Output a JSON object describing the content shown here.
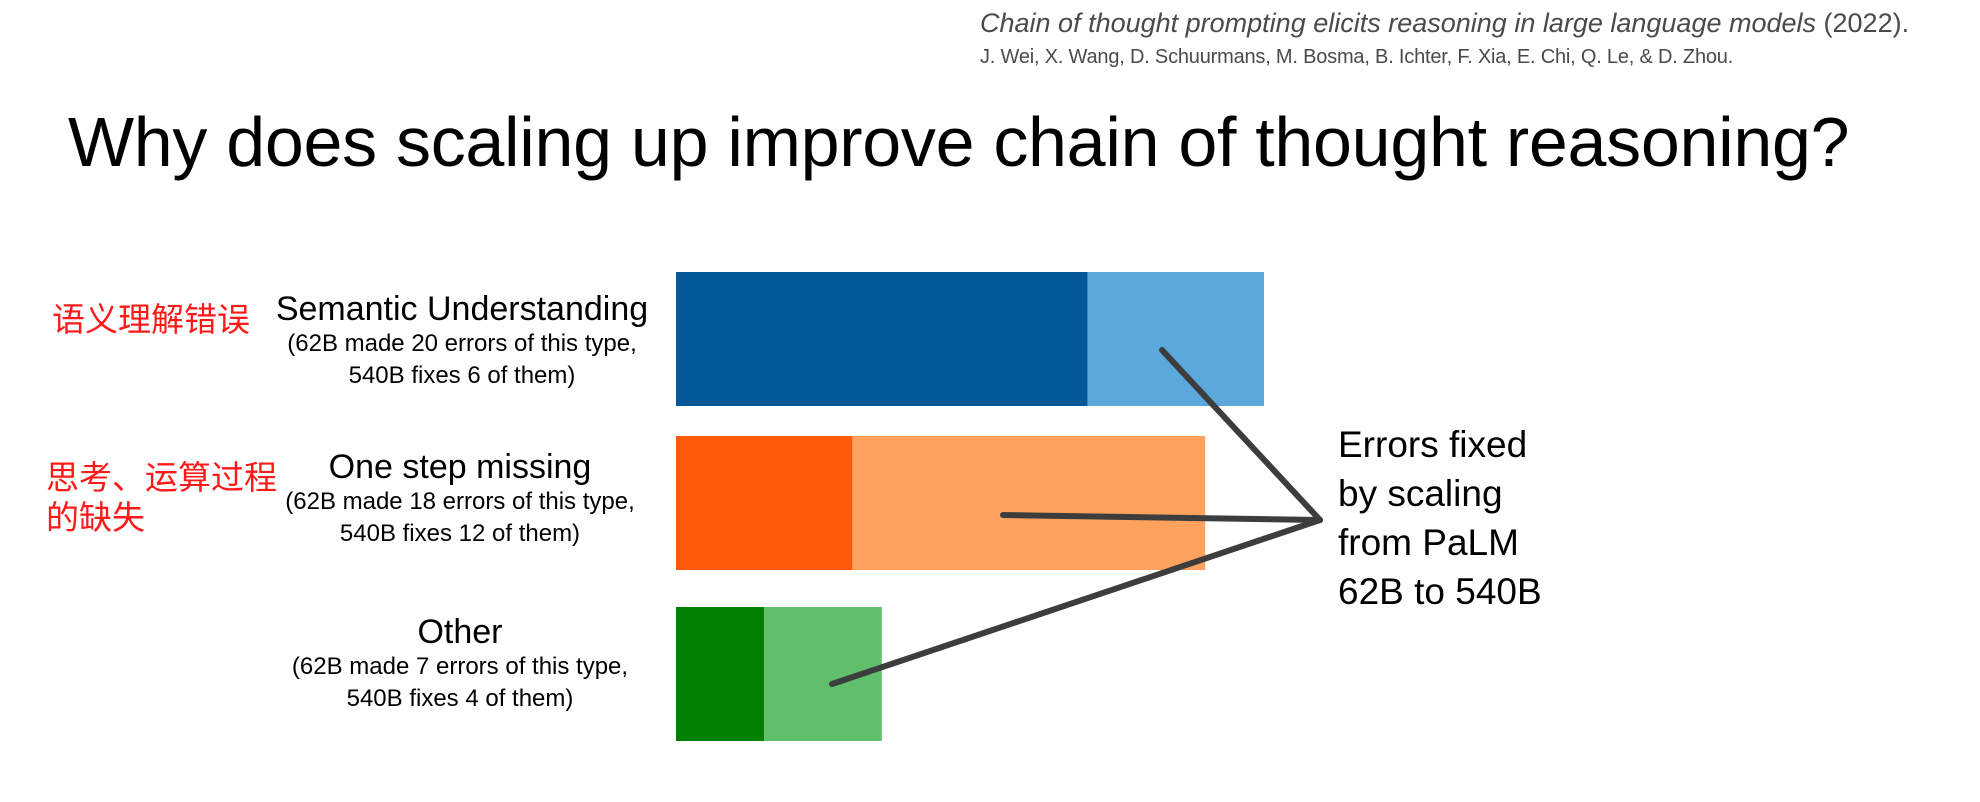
{
  "citation": {
    "paper_title": "Chain of thought prompting elicits reasoning in large language models",
    "year": " (2022).",
    "authors": "J. Wei, X. Wang, D. Schuurmans, M. Bosma, B. Ichter, F. Xia, E. Chi, Q. Le, & D. Zhou."
  },
  "slide_title": "Why does scaling up improve chain of thought reasoning?",
  "annotations": {
    "semantic": "语义理解错误",
    "onestep_line1": "思考、运算过程",
    "onestep_line2": "的缺失"
  },
  "callout": {
    "line1": "Errors fixed",
    "line2": "by scaling",
    "line3": "from PaLM",
    "line4": "62B to 540B"
  },
  "chart_data": {
    "type": "bar",
    "orientation": "horizontal",
    "stacked": true,
    "categories": [
      {
        "name": "Semantic Understanding",
        "sub1": "(62B made 20 errors of this type,",
        "sub2": "540B fixes 6 of them)",
        "errors_62b": 20,
        "fixed_540b": 6
      },
      {
        "name": "One step missing",
        "sub1": "(62B made 18 errors of this type,",
        "sub2": "540B fixes 12 of them)",
        "errors_62b": 18,
        "fixed_540b": 12
      },
      {
        "name": "Other",
        "sub1": "(62B made 7 errors of this type,",
        "sub2": "540B fixes 4 of them)",
        "errors_62b": 7,
        "fixed_540b": 4
      }
    ],
    "colors": [
      {
        "remaining": "#03589a",
        "fixed": "#5aa8dc"
      },
      {
        "remaining": "#ff5a0a",
        "fixed": "#ffa25e"
      },
      {
        "remaining": "#008000",
        "fixed": "#5fbf6a"
      }
    ],
    "connector_color": "#3d3d3d",
    "grid": false
  }
}
